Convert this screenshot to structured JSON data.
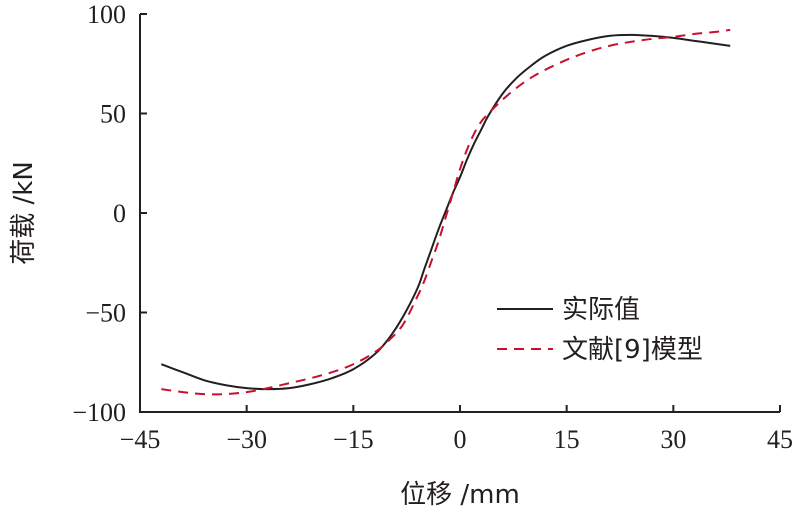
{
  "chart_data": {
    "type": "line",
    "xlabel": "位移 /mm",
    "ylabel": "荷载 /kN",
    "xlim": [
      -45,
      45
    ],
    "ylim": [
      -100,
      100
    ],
    "xticks": [
      -45,
      -30,
      -15,
      0,
      15,
      30,
      45
    ],
    "yticks": [
      -100,
      -50,
      0,
      50,
      100
    ],
    "xtick_labels": [
      "−45",
      "−30",
      "−15",
      "0",
      "15",
      "30",
      "45"
    ],
    "ytick_labels": [
      "−100",
      "−50",
      "0",
      "50",
      "100"
    ],
    "grid": false,
    "legend_position": "bottom-right",
    "series": [
      {
        "name": "实际值",
        "color": "#231f20",
        "dash": "solid",
        "x": [
          -42,
          -39,
          -36,
          -33,
          -30,
          -27,
          -24,
          -21,
          -18,
          -15,
          -12,
          -10,
          -8,
          -6,
          -5,
          -4,
          -3,
          -2,
          -1,
          0,
          1,
          2,
          3,
          4,
          6,
          8,
          10,
          12,
          15,
          18,
          21,
          24,
          27,
          30,
          33,
          36,
          38
        ],
        "y": [
          -76,
          -80,
          -84,
          -86.5,
          -88,
          -88.5,
          -88,
          -86,
          -83,
          -78.5,
          -71,
          -63,
          -52,
          -38,
          -28,
          -18,
          -8,
          1,
          10,
          18,
          27,
          35,
          42,
          49,
          60,
          68,
          74,
          79,
          84,
          87,
          89,
          89.5,
          89,
          88,
          86.5,
          85,
          84
        ]
      },
      {
        "name": "文献[9]模型",
        "color": "#c8102e",
        "dash": "dashed",
        "x": [
          -42,
          -39,
          -36,
          -33,
          -30,
          -27,
          -24,
          -21,
          -18,
          -15,
          -12,
          -10,
          -8,
          -6,
          -5,
          -4,
          -3,
          -2,
          -1,
          0,
          1,
          2,
          3,
          4,
          6,
          8,
          10,
          12,
          15,
          18,
          21,
          24,
          27,
          30,
          33,
          36,
          38
        ],
        "y": [
          -88.5,
          -90,
          -91,
          -91,
          -90,
          -88,
          -85.5,
          -83,
          -80,
          -76,
          -70,
          -64,
          -56,
          -42,
          -34,
          -24,
          -14,
          -2,
          10,
          22,
          32,
          40,
          46,
          50,
          57,
          63,
          68,
          72,
          77,
          81,
          84,
          86,
          87.5,
          88.5,
          90,
          91,
          92
        ]
      }
    ]
  }
}
